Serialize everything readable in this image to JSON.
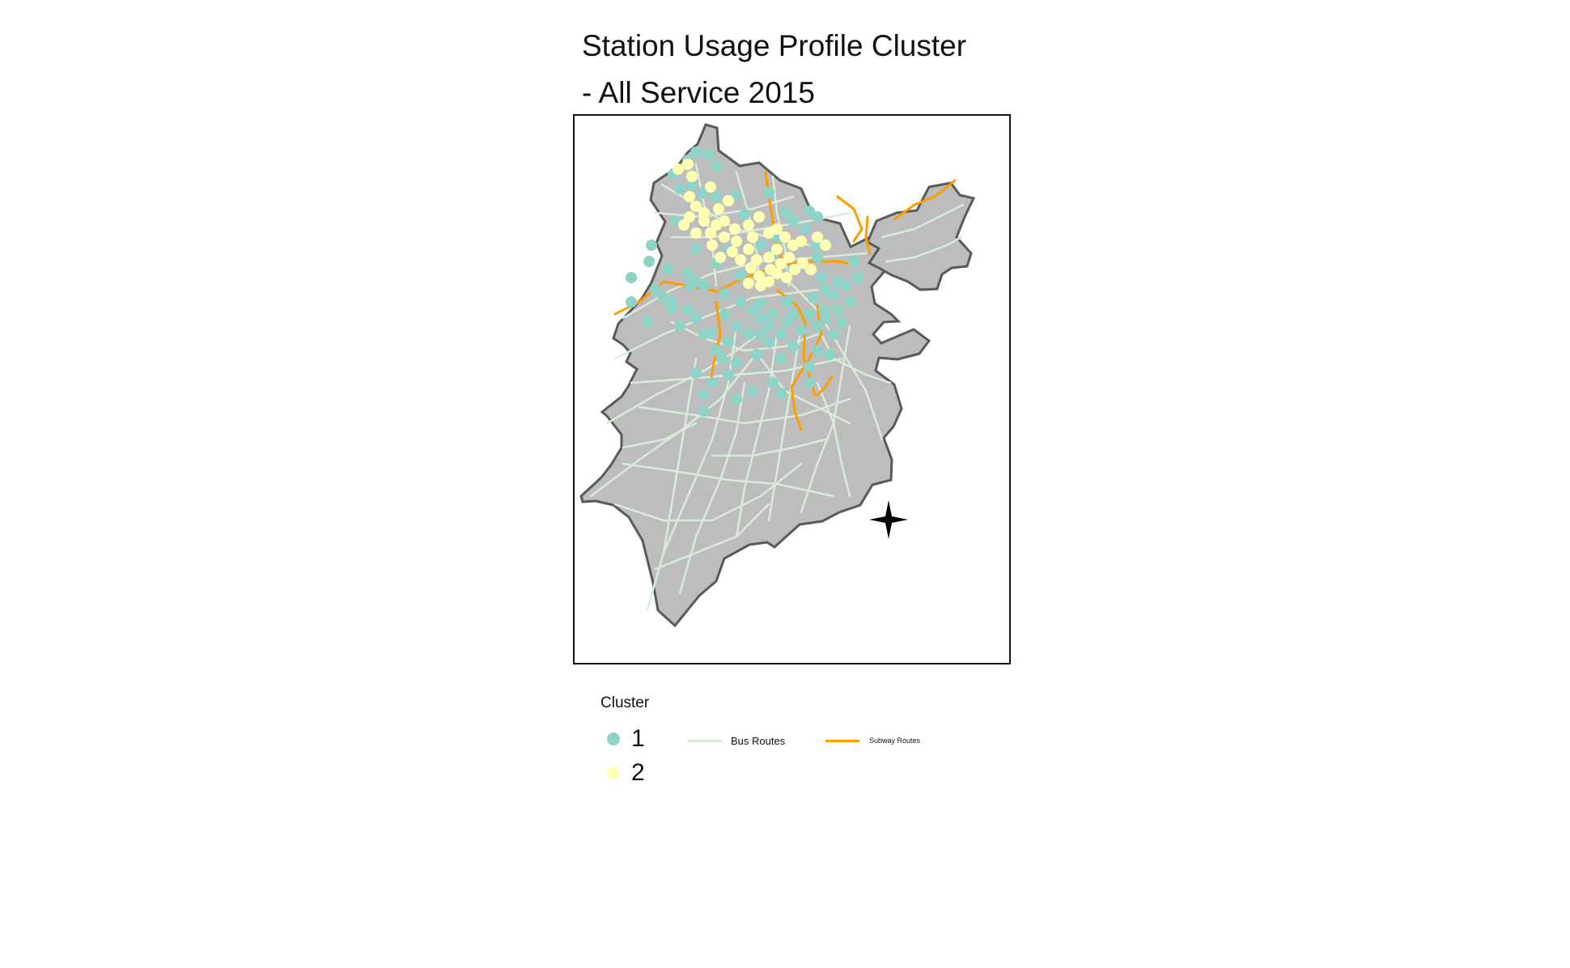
{
  "title_line1": "Station Usage Profile Cluster",
  "title_line2": "- All Service 2015",
  "legend": {
    "cluster_title": "Cluster",
    "clusters": [
      {
        "label": "1",
        "color": "#8dd3c7"
      },
      {
        "label": "2",
        "color": "#ffffb3"
      }
    ],
    "bus_label": "Bus Routes",
    "subway_label": "Subway Routes"
  },
  "colors": {
    "land": "#bdbdbd",
    "boundary": "#5a5a5a",
    "bus_routes": "#d9ecd9",
    "subway_routes": "#ff9d00",
    "cluster_1": "#8dd3c7",
    "cluster_2": "#ffffb3"
  },
  "compass_icon": "north-arrow-star-icon"
}
